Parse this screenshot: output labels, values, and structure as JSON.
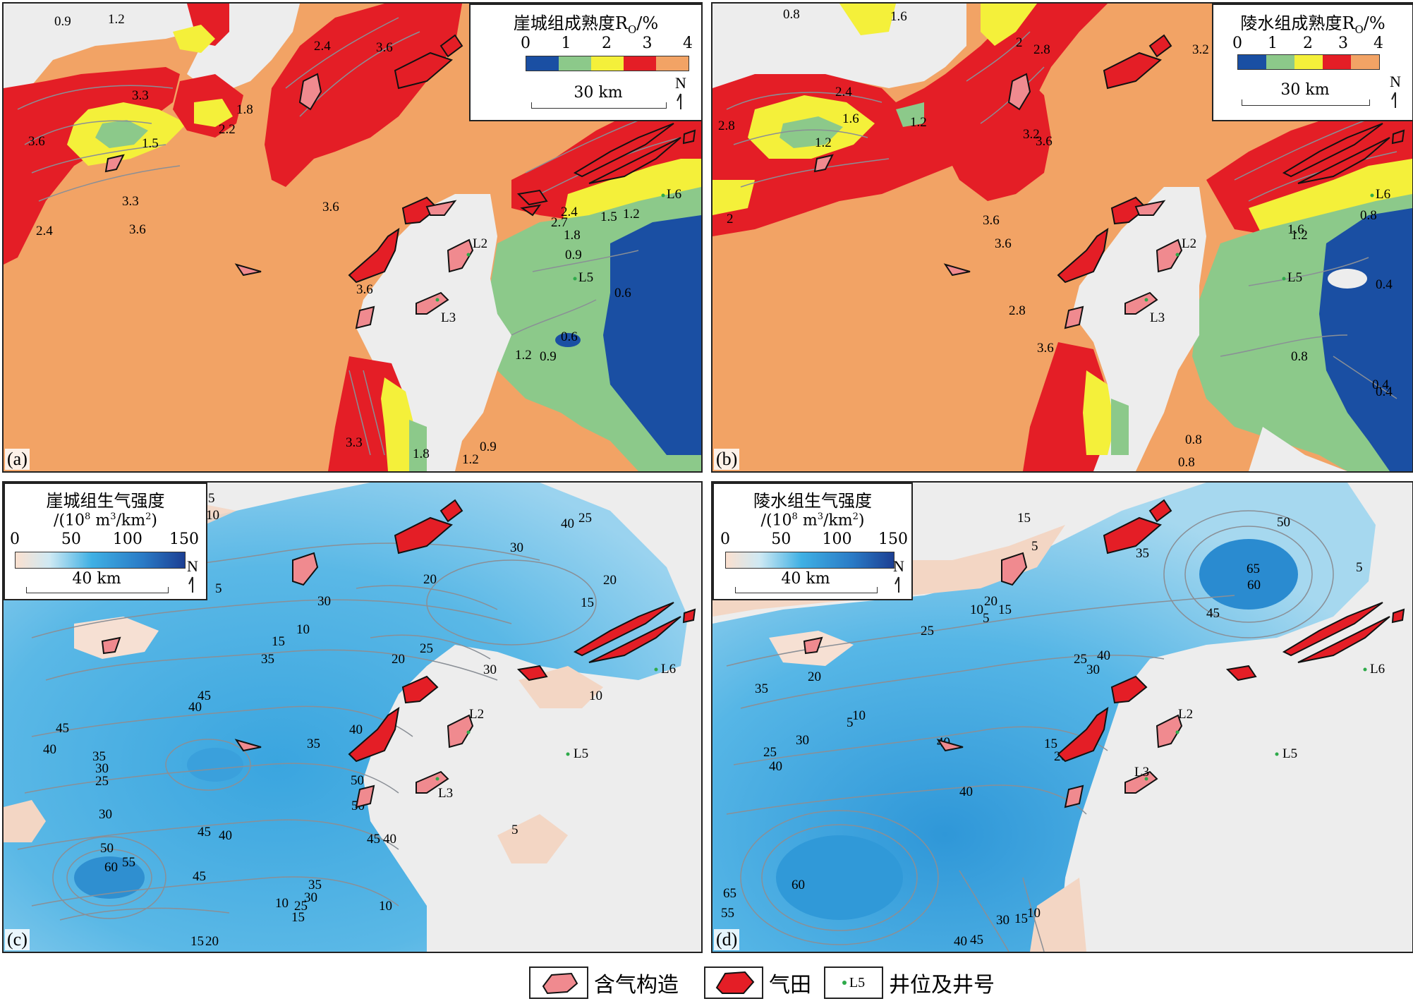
{
  "panels": {
    "a": {
      "label": "(a)",
      "legend_title": "崖城组成熟度R",
      "legend_title_sub": "O",
      "legend_title_unit": "/%",
      "ticks": [
        "0",
        "1",
        "2",
        "3",
        "4"
      ],
      "colors": [
        "#1a4fa3",
        "#8cc98a",
        "#f4f03a",
        "#e41e26",
        "#f2a365"
      ],
      "scale": "30 km",
      "north": "N",
      "contour_labels": [
        "0.9",
        "1.2",
        "2.4",
        "3.6",
        "3.3",
        "1.5",
        "2.2",
        "1.8",
        "3.6",
        "2.4",
        "3.6",
        "3.3",
        "2.4",
        "2.7",
        "1.8",
        "1.5",
        "1.2",
        "0.9",
        "0.6",
        "0.6",
        "0.9",
        "1.2",
        "3.6",
        "3.6",
        "3.3",
        "1.8",
        "1.2",
        "0.9"
      ],
      "wells": [
        "L2",
        "L3",
        "L5",
        "L6"
      ]
    },
    "b": {
      "label": "(b)",
      "legend_title": "陵水组成熟度R",
      "legend_title_sub": "O",
      "legend_title_unit": "/%",
      "ticks": [
        "0",
        "1",
        "2",
        "3",
        "4"
      ],
      "colors": [
        "#1a4fa3",
        "#8cc98a",
        "#f4f03a",
        "#e41e26",
        "#f2a365"
      ],
      "scale": "30 km",
      "north": "N",
      "contour_labels": [
        "0.8",
        "1.6",
        "2",
        "2.8",
        "3.2",
        "2.4",
        "1.6",
        "1.2",
        "1.2",
        "2.8",
        "3.2",
        "3.6",
        "2",
        "3.6",
        "1.6",
        "1.2",
        "0.8",
        "0.8",
        "0.4",
        "0.4",
        "3.6",
        "3.6",
        "2.8",
        "0.8",
        "0.8",
        "0.4"
      ],
      "wells": [
        "L2",
        "L3",
        "L5",
        "L6"
      ]
    },
    "c": {
      "label": "(c)",
      "legend_title": "崖城组生气强度",
      "legend_unit_pre": "/(10",
      "legend_unit_sup1": "8",
      "legend_unit_mid": " m",
      "legend_unit_sup2": "3",
      "legend_unit_post": "/km",
      "legend_unit_sup3": "2",
      "legend_unit_end": ")",
      "ticks": [
        "0",
        "50",
        "100",
        "150"
      ],
      "scale": "40 km",
      "north": "N",
      "contour_labels": [
        "5",
        "10",
        "5",
        "30",
        "20",
        "40",
        "25",
        "30",
        "20",
        "15",
        "10",
        "15",
        "35",
        "45",
        "40",
        "20",
        "25",
        "30",
        "10",
        "45",
        "40",
        "35",
        "30",
        "25",
        "50",
        "45",
        "40",
        "35",
        "50",
        "60",
        "55",
        "45",
        "40",
        "35",
        "30",
        "25",
        "10",
        "5",
        "15",
        "20",
        "10",
        "5",
        "15",
        "50",
        "40",
        "45",
        "30"
      ],
      "wells": [
        "L2",
        "L3",
        "L5",
        "L6"
      ]
    },
    "d": {
      "label": "(d)",
      "legend_title": "陵水组生气强度",
      "legend_unit_pre": "/(10",
      "legend_unit_sup1": "8",
      "legend_unit_mid": " m",
      "legend_unit_sup2": "3",
      "legend_unit_post": "/km",
      "legend_unit_sup3": "2",
      "legend_unit_end": ")",
      "ticks": [
        "0",
        "50",
        "100",
        "150"
      ],
      "scale": "40 km",
      "north": "N",
      "contour_labels": [
        "15",
        "5",
        "50",
        "35",
        "65",
        "60",
        "45",
        "40",
        "30",
        "25",
        "20",
        "10",
        "5",
        "15",
        "25",
        "20",
        "10",
        "5",
        "35",
        "40",
        "30",
        "40",
        "25",
        "20",
        "15",
        "40",
        "60",
        "65",
        "55",
        "30",
        "45",
        "40",
        "15",
        "10",
        "5"
      ],
      "wells": [
        "L2",
        "L3",
        "L5",
        "L6"
      ]
    }
  },
  "legend": {
    "gas_structure": "含气构造",
    "gas_field": "气田",
    "well": "井位及井号",
    "well_sample": "L5"
  }
}
